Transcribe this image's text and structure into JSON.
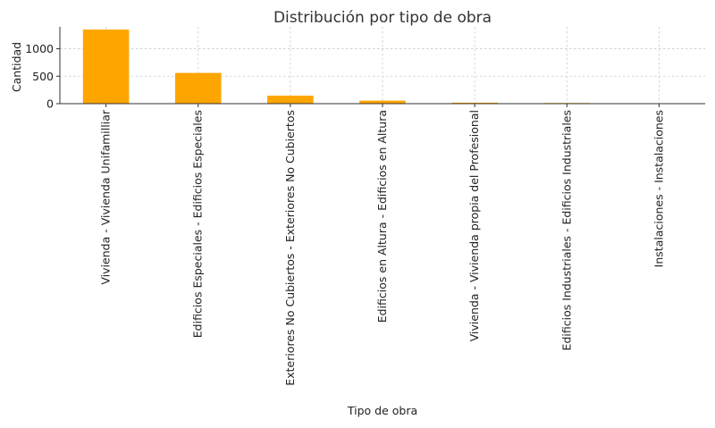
{
  "chart_data": {
    "type": "bar",
    "title": "Distribución por tipo de obra",
    "xlabel": "Tipo de obra",
    "ylabel": "Cantidad",
    "categories": [
      "Vivienda - Vivienda Unifamilliar",
      "Edificios Especiales - Edificios Especiales",
      "Exteriores No Cubiertos - Exteriores No Cubiertos",
      "Edificios en Altura - Edificios en Altura",
      "Vivienda - Vivienda propia del Profesional",
      "Edificios Industriales - Edificios Industriales",
      "Instalaciones - Instalaciones"
    ],
    "values": [
      1350,
      560,
      145,
      55,
      18,
      12,
      3
    ],
    "ylim": [
      0,
      1400
    ],
    "yticks": [
      0,
      500,
      1000
    ],
    "grid": true,
    "bar_color": "#FFA500"
  }
}
